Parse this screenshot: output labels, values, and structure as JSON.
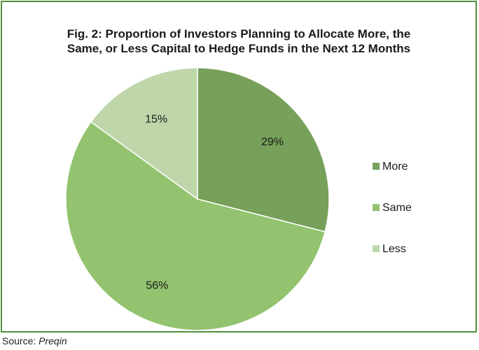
{
  "chart_data": {
    "type": "pie",
    "title_lines": [
      "Fig. 2: Proportion of Investors Planning to Allocate More, the",
      "Same, or Less Capital to Hedge Funds in the Next 12 Months"
    ],
    "slices": [
      {
        "name": "More",
        "value": 29,
        "label": "29%",
        "color": "#77a05a"
      },
      {
        "name": "Same",
        "value": 56,
        "label": "56%",
        "color": "#93c36e"
      },
      {
        "name": "Less",
        "value": 15,
        "label": "15%",
        "color": "#bfd6ab"
      }
    ],
    "start": "12 o'clock",
    "direction": "clockwise",
    "legend_position": "right"
  },
  "source": {
    "prefix": "Source:",
    "name": "Preqin"
  }
}
